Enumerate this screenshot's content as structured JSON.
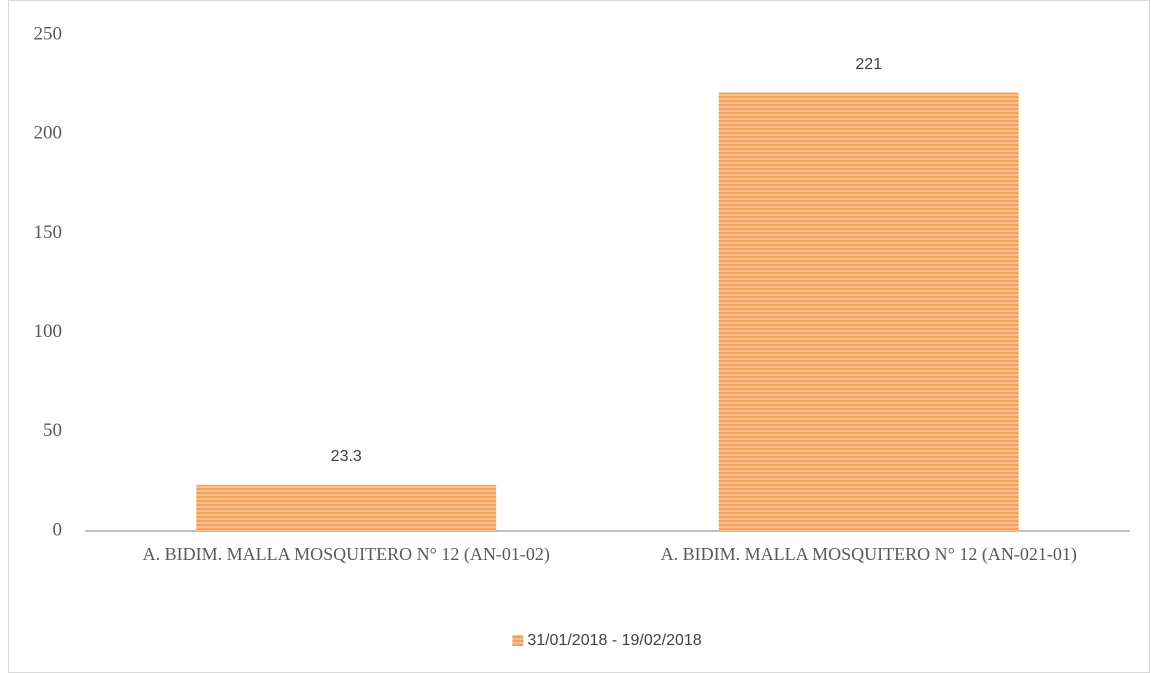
{
  "chart_data": {
    "type": "bar",
    "categories": [
      "A. BIDIM. MALLA MOSQUITERO N° 12 (AN-01-02)",
      "A. BIDIM. MALLA MOSQUITERO N° 12 (AN-021-01)"
    ],
    "series": [
      {
        "name": "31/01/2018 - 19/02/2018",
        "color": "#f4a15c",
        "values": [
          23.3,
          221
        ]
      }
    ],
    "ylim": [
      0,
      250
    ],
    "yticks": [
      0,
      50,
      100,
      150,
      200,
      250
    ],
    "grid": false,
    "legend": "bottom"
  }
}
